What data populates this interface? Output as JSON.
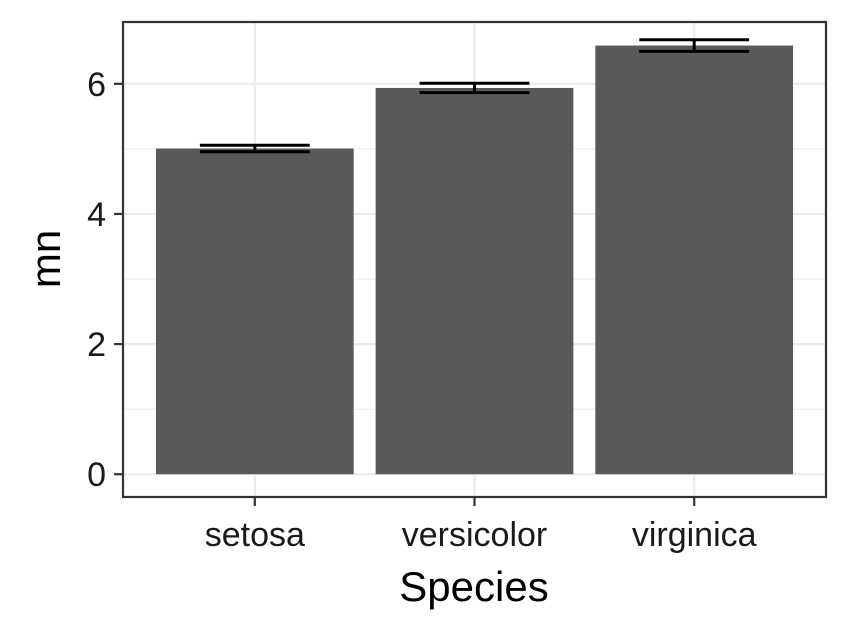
{
  "chart_data": {
    "type": "bar",
    "title": "",
    "xlabel": "Species",
    "ylabel": "mn",
    "categories": [
      "setosa",
      "versicolor",
      "virginica"
    ],
    "values": [
      5.006,
      5.936,
      6.588
    ],
    "error_low": [
      4.956,
      5.864,
      6.498
    ],
    "error_high": [
      5.056,
      6.008,
      6.678
    ],
    "ylim": [
      -0.35,
      6.95
    ],
    "y_ticks": [
      0,
      2,
      4,
      6
    ],
    "grid": true,
    "legend": "none",
    "colors": {
      "bar": "#595959",
      "error_bar": "#000000",
      "grid": "#ebebeb",
      "panel_border": "#333333",
      "axis_text": "#1a1a1a",
      "tick": "#333333"
    }
  }
}
